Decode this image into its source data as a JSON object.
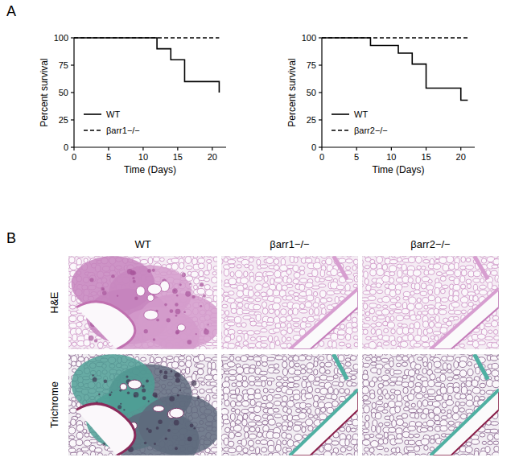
{
  "panel_labels": [
    "A",
    "B"
  ],
  "chart_data": [
    {
      "type": "line",
      "xlabel": "Time (Days)",
      "ylabel": "Percent survival",
      "xlim": [
        0,
        22
      ],
      "ylim": [
        0,
        100
      ],
      "xticks": [
        0,
        5,
        10,
        15,
        20
      ],
      "yticks": [
        0,
        25,
        50,
        75,
        100
      ],
      "line_style": "step",
      "legend": "lower left",
      "series": [
        {
          "name": "WT",
          "color": "#000000",
          "line_style": "solid",
          "x": [
            0,
            12,
            14,
            16,
            21
          ],
          "values": [
            100,
            90,
            80,
            60,
            50
          ]
        },
        {
          "name": "βarr1−/−",
          "color": "#000000",
          "line_style": "dashed",
          "x": [
            0,
            21
          ],
          "values": [
            100,
            100
          ]
        }
      ]
    },
    {
      "type": "line",
      "xlabel": "Time (Days)",
      "ylabel": "Percent survival",
      "xlim": [
        0,
        22
      ],
      "ylim": [
        0,
        100
      ],
      "xticks": [
        0,
        5,
        10,
        15,
        20
      ],
      "yticks": [
        0,
        25,
        50,
        75,
        100
      ],
      "line_style": "step",
      "legend": "lower left",
      "series": [
        {
          "name": "WT",
          "color": "#000000",
          "line_style": "solid",
          "x": [
            0,
            7,
            11,
            13,
            15,
            20,
            21
          ],
          "values": [
            100,
            93,
            86,
            76,
            54,
            43,
            43
          ]
        },
        {
          "name": "βarr2−/−",
          "color": "#000000",
          "line_style": "dashed",
          "x": [
            0,
            21
          ],
          "values": [
            100,
            100
          ]
        }
      ]
    }
  ],
  "histology": {
    "columns": [
      "WT",
      "βarr1−/−",
      "βarr2−/−"
    ],
    "rows": [
      "H&E",
      "Trichrome"
    ]
  }
}
